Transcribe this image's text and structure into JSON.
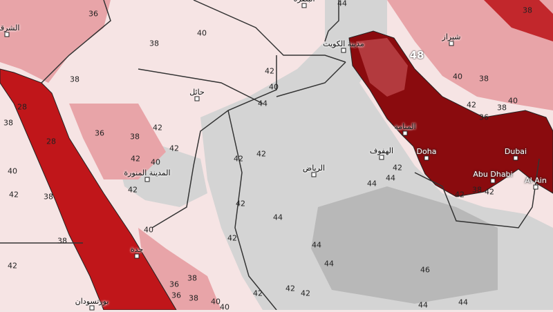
{
  "map": {
    "colors": {
      "land_hot": "#d4d4d4",
      "land_hotter": "#b8b8b8",
      "land_warm": "#f6e4e4",
      "land_mild": "#e8a4a8",
      "sea": "#c0161a",
      "gulf_deep": "#8a0b0e",
      "gulf_light": "#b33a3e",
      "border": "#333333"
    },
    "cities": [
      {
        "name": "البصرة"
      },
      {
        "name": "مدينة الكويت"
      },
      {
        "name": "شيراز"
      },
      {
        "name": "المنامة"
      },
      {
        "name": "الهفوف"
      },
      {
        "name": "Doha"
      },
      {
        "name": "الرياض"
      },
      {
        "name": "Dubai"
      },
      {
        "name": "Abu Dhabi"
      },
      {
        "name": "Al Ain"
      },
      {
        "name": "حائل"
      },
      {
        "name": "المدينة المنورة"
      },
      {
        "name": "جدة"
      },
      {
        "name": "بورتسودان"
      },
      {
        "name": "الشرقية"
      }
    ],
    "contour_labels": [
      "40",
      "38",
      "36",
      "38",
      "28",
      "38",
      "28",
      "36",
      "38",
      "42",
      "42",
      "40",
      "42",
      "42",
      "42",
      "42",
      "44",
      "42",
      "40",
      "42",
      "38",
      "42",
      "40",
      "38",
      "36",
      "38",
      "40",
      "42",
      "40",
      "42",
      "42",
      "44",
      "44",
      "42",
      "44",
      "44",
      "46",
      "44",
      "44",
      "42",
      "48",
      "40",
      "38",
      "40",
      "42",
      "36",
      "38",
      "42",
      "42",
      "38",
      "36",
      "38",
      "44",
      "44",
      "42",
      "40",
      "38"
    ]
  }
}
